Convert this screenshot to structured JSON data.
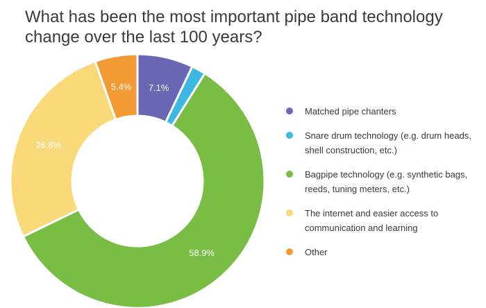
{
  "chart_data": {
    "type": "pie",
    "title": "What has been the most important pipe band technology change over the last 100 years?",
    "series": [
      {
        "name": "Matched pipe chanters",
        "value": 7.1,
        "label": "7.1%",
        "color": "#6a67b5"
      },
      {
        "name": "Snare drum technology (e.g. drum heads, shell construction, etc.)",
        "value": 1.8,
        "label": "",
        "color": "#3cb8e3"
      },
      {
        "name": "Bagpipe technology (e.g. synthetic bags, reeds, tuning meters, etc.)",
        "value": 58.9,
        "label": "58.9%",
        "color": "#79bd44"
      },
      {
        "name": "The internet and easier access to communication and learning",
        "value": 26.8,
        "label": "26.8%",
        "color": "#fad97b"
      },
      {
        "name": "Other",
        "value": 5.4,
        "label": "5.4%",
        "color": "#f29a33"
      }
    ]
  }
}
